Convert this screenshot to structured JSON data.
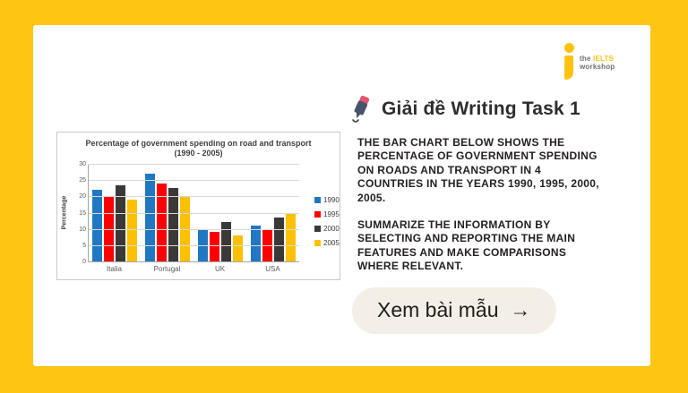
{
  "page": {
    "background": "#FFC513"
  },
  "logo": {
    "the": "the ",
    "brand": "IELTS",
    "workshop": "workshop",
    "brand_color": "#FFC20E"
  },
  "header": {
    "title": "Giải đề Writing Task 1"
  },
  "task": {
    "paragraph1": "THE BAR CHART BELOW SHOWS THE\nPERCENTAGE OF GOVERNMENT SPENDING\nON ROADS AND TRANSPORT IN 4\nCOUNTRIES IN THE YEARS 1990, 1995, 2000,\n2005.",
    "paragraph2": "SUMMARIZE THE INFORMATION BY\nSELECTING AND REPORTING THE MAIN\nFEATURES AND MAKE COMPARISONS\nWHERE RELEVANT."
  },
  "cta": {
    "label": "Xem bài mẫu",
    "arrow": "→",
    "background": "#F3EFE6"
  },
  "chart_data": {
    "type": "bar",
    "title": "Percentage of government spending on road and transport",
    "subtitle": "(1990 - 2005)",
    "ylabel": "Percentage",
    "categories": [
      "Italia",
      "Portugal",
      "UK",
      "USA"
    ],
    "series": [
      {
        "name": "1990",
        "color": "#1F78C1",
        "values": [
          22,
          27,
          10,
          11
        ]
      },
      {
        "name": "1995",
        "color": "#FE0000",
        "values": [
          20,
          24,
          9,
          10
        ]
      },
      {
        "name": "2000",
        "color": "#3B3838",
        "values": [
          23.5,
          22.5,
          12,
          13.5
        ]
      },
      {
        "name": "2005",
        "color": "#FFC000",
        "values": [
          19,
          20,
          8,
          15
        ]
      }
    ],
    "ylim": [
      0,
      30
    ],
    "ytick_step": 5,
    "grid": true,
    "legend_position": "right"
  }
}
